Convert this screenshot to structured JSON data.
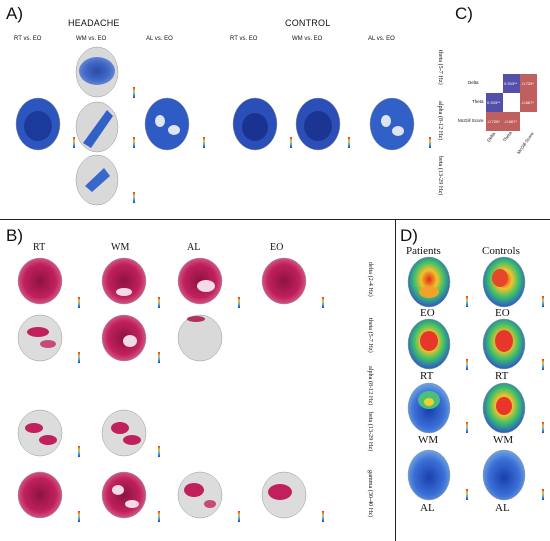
{
  "panelA": {
    "label": "A)",
    "group1": "HEADACHE",
    "group2": "CONTROL",
    "cols": [
      "RT vs. EO",
      "WM vs. EO",
      "AL vs. EO",
      "RT vs. EO",
      "WM vs. EO",
      "AL vs. EO"
    ],
    "bands": [
      "theta (5-7 Hz)",
      "alpha (8-12 Hz)",
      "beta (13-29 Hz)"
    ]
  },
  "panelB": {
    "label": "B)",
    "cols": [
      "RT",
      "WM",
      "AL",
      "EO"
    ],
    "bands": [
      "delta (2-4 Hz)",
      "theta (5-7 Hz)",
      "alpha (8-12 Hz)",
      "beta (13-29 Hz)",
      "gamma (30-40 Hz)"
    ]
  },
  "panelC": {
    "label": "C)",
    "rows": [
      "Delta",
      "Theta",
      "McGill Score"
    ],
    "cols": [
      "Delta",
      "Theta",
      "McGill Score"
    ],
    "cells": [
      [
        "",
        "0.933**",
        "-0.725*"
      ],
      [
        "0.933**",
        "",
        "-0.667*"
      ],
      [
        "-0.725*",
        "-0.667*",
        ""
      ]
    ]
  },
  "panelD": {
    "label": "D)",
    "group1": "Patients",
    "group2": "Controls",
    "conditions": [
      "EO",
      "RT",
      "WM",
      "AL"
    ]
  },
  "colors": {
    "blue_map": "#2a4fb0",
    "magenta_map": "#c0205c",
    "positive_cell": "#5250a8",
    "negative_cell": "#c0605e"
  }
}
